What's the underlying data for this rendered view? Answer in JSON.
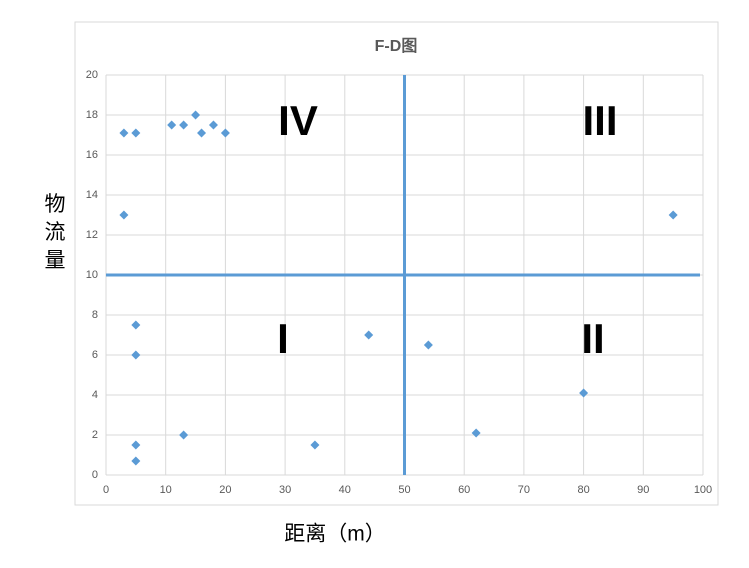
{
  "chart_data": {
    "type": "scatter",
    "title": "F-D图",
    "x_label": "距离（m）",
    "y_label": "物流量",
    "x": [
      3,
      5,
      11,
      13,
      15,
      16,
      18,
      20,
      3,
      95,
      5,
      5,
      44,
      54,
      80,
      13,
      35,
      62,
      5,
      5
    ],
    "values": [
      17.1,
      17.1,
      17.5,
      17.5,
      18,
      17.1,
      17.5,
      17.1,
      13,
      13,
      7.5,
      6,
      7,
      6.5,
      4.1,
      2,
      1.5,
      2.1,
      1.5,
      0.7
    ],
    "color": "#5b9bd5",
    "xlim": [
      0,
      100
    ],
    "xticks": [
      0,
      10,
      20,
      30,
      40,
      50,
      60,
      70,
      80,
      90,
      100
    ],
    "ylim": [
      0,
      20
    ],
    "yticks": [
      0,
      2,
      4,
      6,
      8,
      10,
      12,
      14,
      16,
      18,
      20
    ],
    "grid": true,
    "divider_x": 50,
    "divider_y": 10,
    "divider_color": "#5b9bd5",
    "quadrant_labels": [
      "IV",
      "III",
      "I",
      "II"
    ]
  }
}
